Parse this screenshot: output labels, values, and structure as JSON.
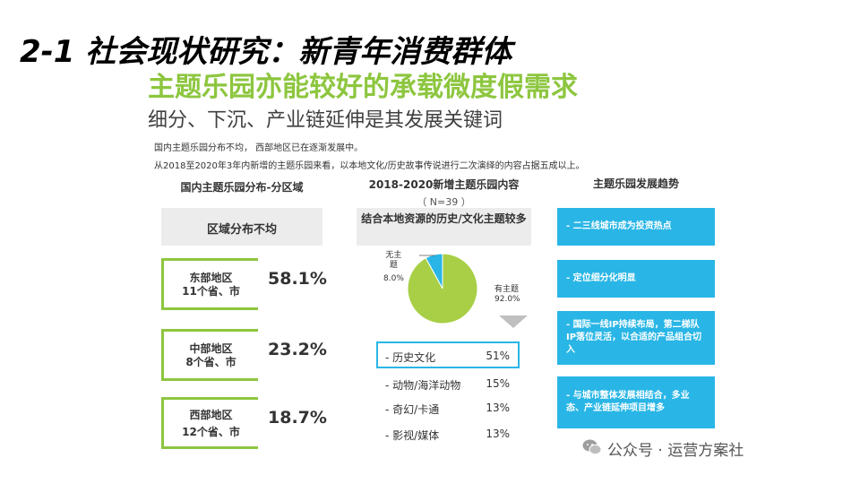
{
  "header": {
    "title": "2-1 社会现状研究：新青年消费群体",
    "subtitle": "主题乐园亦能较好的承载微度假需求",
    "subtitle2": "细分、下沉、产业链延伸是其发展关键词"
  },
  "notes": [
    "国内主题乐园分布不均，  西部地区已在逐渐发展中。",
    "从2018至2020年3年内新增的主题乐园来看，以本地文化/历史故事传说进行二次演绎的内容占据五成以上。"
  ],
  "region_section": {
    "heading": "国内主题乐园分布-分区域",
    "box_label": "区域分布不均",
    "regions": [
      {
        "name": "东部地区",
        "detail": "11个省、市",
        "percent": "58.1%",
        "value": 58.1
      },
      {
        "name": "中部地区",
        "detail": "8个省、市",
        "percent": "23.2%",
        "value": 23.2
      },
      {
        "name": "西部地区",
        "detail": "12个省、市",
        "percent": "18.7%",
        "value": 18.7
      }
    ]
  },
  "content_section": {
    "heading": "2018-2020新增主题乐园内容",
    "sample": "（ N=39 ）",
    "box_label": "结合本地资源的历史/文化主题较多",
    "list": [
      {
        "label": "- 历史文化",
        "value": "51%"
      },
      {
        "label": "- 动物/海洋动物",
        "value": "15%"
      },
      {
        "label": "- 奇幻/卡通",
        "value": "13%"
      },
      {
        "label": "- 影视/媒体",
        "value": "13%"
      }
    ]
  },
  "trend_section": {
    "heading": "主题乐园发展趋势",
    "items": [
      "- 二三线城市成为投资热点",
      "- 定位细分化明显",
      "- 国际一线IP持续布局，第二梯队IP落位灵活，以合适的产品组合切入",
      "- 与城市整体发展相结合，多业态、产业链延伸项目增多"
    ]
  },
  "chart_data": {
    "type": "pie",
    "slices": [
      {
        "label": "有主题",
        "label_lines": [
          "有主题"
        ],
        "value": 92.0,
        "display": "92.0%",
        "color": "#a8cf45"
      },
      {
        "label": "无主题",
        "label_lines": [
          "无主",
          "题"
        ],
        "value": 8.0,
        "display": "8.0%",
        "color": "#29b6e6"
      }
    ]
  },
  "colors": {
    "accent_green": "#8dc63f",
    "accent_blue": "#29b6e6"
  },
  "watermark": "公众号 · 运营方案社"
}
